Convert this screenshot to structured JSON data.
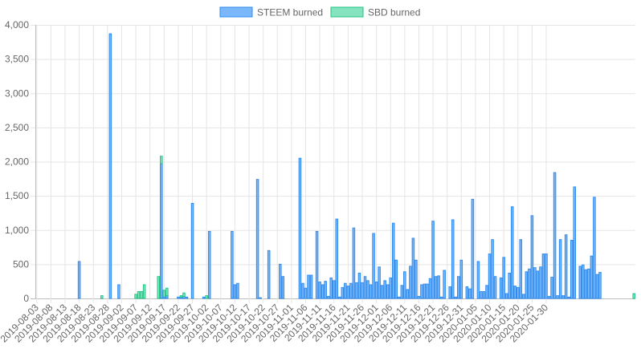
{
  "chart_data": {
    "type": "bar",
    "stacked": true,
    "legend_position": "top",
    "grid": true,
    "ylim": [
      0,
      4000
    ],
    "y_ticks": [
      "0",
      "500",
      "1,000",
      "1,500",
      "2,000",
      "2,500",
      "3,000",
      "3,500",
      "4,000"
    ],
    "x_tick_labels": [
      "2019-08-03",
      "2019-08-08",
      "2019-08-13",
      "2019-08-18",
      "2019-08-23",
      "2019-08-28",
      "2019-09-02",
      "2019-09-07",
      "2019-09-12",
      "2019-09-17",
      "2019-09-22",
      "2019-09-27",
      "2019-10-02",
      "2019-10-07",
      "2019-10-12",
      "2019-10-17",
      "2019-10-22",
      "2019-10-27",
      "2019-11-01",
      "2019-11-06",
      "2019-11-11",
      "2019-11-16",
      "2019-11-21",
      "2019-11-26",
      "2019-12-01",
      "2019-12-06",
      "2019-12-11",
      "2019-12-16",
      "2019-12-21",
      "2019-12-26",
      "2019-12-31",
      "2020-01-05",
      "2020-01-10",
      "2020-01-15",
      "2020-01-20",
      "2020-01-25",
      "2020-01-30"
    ],
    "start_date": "2019-08-03",
    "series": [
      {
        "name": "STEEM burned",
        "color": "#2f8cf0",
        "fill": "#7ab8fb",
        "values": [
          0,
          0,
          0,
          0,
          0,
          0,
          0,
          0,
          0,
          0,
          0,
          0,
          0,
          0,
          0,
          540,
          0,
          0,
          0,
          0,
          0,
          0,
          0,
          0,
          0,
          0,
          3870,
          0,
          0,
          200,
          0,
          0,
          0,
          0,
          0,
          0,
          0,
          0,
          0,
          0,
          0,
          0,
          0,
          0,
          1970,
          20,
          40,
          0,
          0,
          0,
          20,
          20,
          30,
          20,
          0,
          1390,
          0,
          0,
          0,
          20,
          0,
          980,
          0,
          0,
          0,
          0,
          0,
          0,
          0,
          980,
          200,
          220,
          0,
          0,
          0,
          0,
          0,
          0,
          1740,
          10,
          0,
          0,
          700,
          0,
          0,
          0,
          500,
          320,
          0,
          0,
          0,
          0,
          0,
          2050,
          220,
          150,
          340,
          340,
          0,
          980,
          240,
          200,
          250,
          30,
          300,
          260,
          1160,
          20,
          160,
          220,
          180,
          220,
          1030,
          230,
          370,
          230,
          320,
          260,
          200,
          950,
          240,
          460,
          190,
          260,
          200,
          300,
          1100,
          560,
          20,
          190,
          390,
          130,
          470,
          880,
          560,
          30,
          200,
          210,
          210,
          290,
          1130,
          320,
          330,
          20,
          410,
          0,
          170,
          1150,
          20,
          320,
          560,
          0,
          170,
          140,
          1450,
          0,
          540,
          100,
          100,
          190,
          650,
          860,
          320,
          0,
          300,
          600,
          70,
          370,
          1340,
          180,
          160,
          860,
          60,
          390,
          430,
          1210,
          450,
          400,
          460,
          650,
          650,
          30,
          310,
          1840,
          40,
          860,
          40,
          930,
          20,
          850,
          1630,
          0,
          470,
          490,
          420,
          430,
          620,
          1480,
          350,
          380
        ]
      },
      {
        "name": "SBD burned",
        "color": "#23c586",
        "fill": "#86e3bf",
        "values": [
          0,
          0,
          0,
          0,
          0,
          0,
          0,
          0,
          0,
          0,
          0,
          0,
          0,
          0,
          0,
          0,
          0,
          0,
          0,
          0,
          0,
          0,
          0,
          40,
          0,
          0,
          0,
          0,
          0,
          0,
          0,
          0,
          0,
          0,
          0,
          60,
          100,
          100,
          200,
          0,
          0,
          0,
          0,
          320,
          110,
          100,
          110,
          0,
          0,
          0,
          0,
          20,
          50,
          0,
          0,
          0,
          0,
          0,
          0,
          0,
          40,
          0,
          0,
          0,
          0,
          0,
          0,
          0,
          0,
          0,
          0,
          0,
          0,
          0,
          0,
          0,
          0,
          0,
          0,
          0,
          0,
          0,
          0,
          0,
          0,
          0,
          0,
          0,
          0,
          0,
          0,
          0,
          0,
          0,
          0,
          0,
          0,
          0,
          0,
          0,
          0,
          0,
          0,
          0,
          0,
          0,
          0,
          0,
          0,
          0,
          0,
          0,
          0,
          0,
          0,
          0,
          0,
          0,
          0,
          0,
          0,
          0,
          0,
          0,
          0,
          0,
          0,
          0,
          0,
          0,
          0,
          0,
          0,
          0,
          0,
          0,
          0,
          0,
          0,
          0,
          0,
          0,
          0,
          0,
          0,
          0,
          0,
          0,
          0,
          0,
          0,
          0,
          0,
          0,
          0,
          0,
          0,
          0,
          0,
          0,
          0,
          0,
          0,
          0,
          0,
          0,
          0,
          0,
          0,
          0,
          0,
          0,
          0,
          0,
          0,
          0,
          0,
          0,
          0,
          0,
          0,
          0,
          0,
          0,
          0,
          0,
          0,
          0,
          0,
          0,
          0,
          0,
          0,
          0,
          0,
          0,
          0,
          0,
          0,
          0,
          0,
          0,
          0,
          0,
          0,
          0,
          0,
          0,
          0,
          0,
          0,
          70
        ]
      }
    ]
  }
}
